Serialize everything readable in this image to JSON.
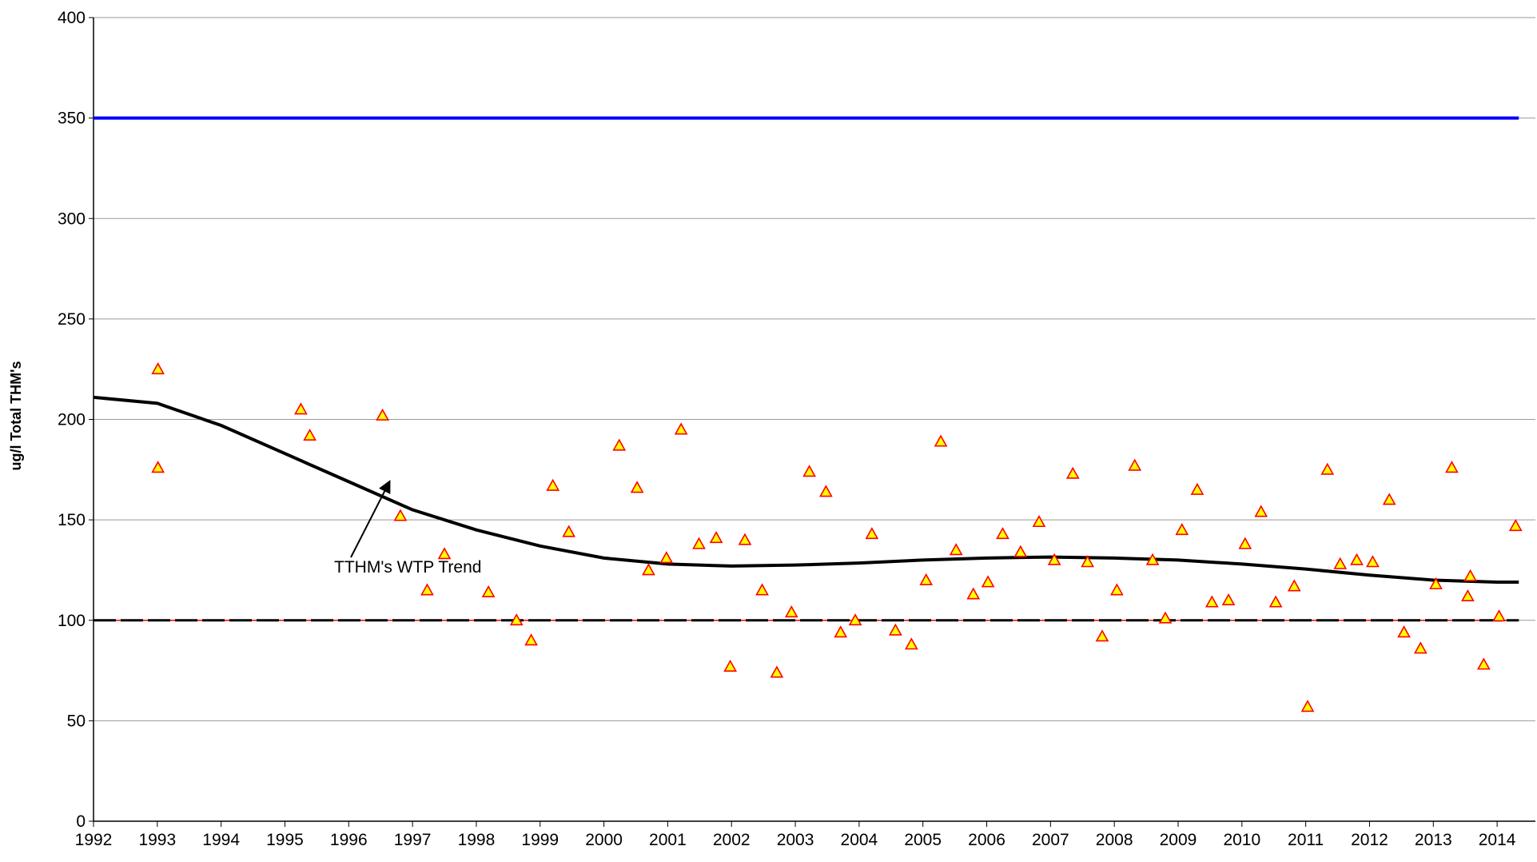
{
  "chart_data": {
    "type": "scatter",
    "y_label": "ug/l Total THM's",
    "annotation": "TTHM's WTP Trend",
    "xlim": [
      1992,
      2014.6
    ],
    "ylim": [
      0,
      400
    ],
    "xticks": [
      1992,
      1993,
      1994,
      1995,
      1996,
      1997,
      1998,
      1999,
      2000,
      2001,
      2002,
      2003,
      2004,
      2005,
      2006,
      2007,
      2008,
      2009,
      2010,
      2011,
      2012,
      2013,
      2014
    ],
    "yticks": [
      0,
      50,
      100,
      150,
      200,
      250,
      300,
      350,
      400
    ],
    "grid": true,
    "series": [
      {
        "mode": "lines",
        "color": "#ff0000",
        "dash": false,
        "width": 1.5,
        "x": [
          1992,
          2014.34
        ],
        "values": [
          100,
          100
        ]
      },
      {
        "mode": "lines",
        "color": "#000000",
        "dash": true,
        "width": 3,
        "x": [
          1992,
          2014.34
        ],
        "values": [
          100,
          100
        ]
      },
      {
        "mode": "lines",
        "color": "#0000ff",
        "dash": false,
        "width": 4,
        "x": [
          1992,
          2014.34
        ],
        "values": [
          350,
          350
        ]
      },
      {
        "mode": "lines",
        "color": "#000000",
        "dash": false,
        "width": 4,
        "x": [
          1992,
          1993,
          1994,
          1995,
          1996,
          1997,
          1998,
          1999,
          2000,
          2001,
          2002,
          2003,
          2004,
          2005,
          2006,
          2007,
          2008,
          2009,
          2010,
          2011,
          2012,
          2013,
          2014,
          2014.34
        ],
        "values": [
          211,
          208,
          197,
          183,
          169,
          155,
          145,
          137,
          131,
          128,
          127,
          127.5,
          128.5,
          130,
          131,
          131.5,
          131,
          130,
          128,
          125.5,
          122.5,
          120,
          119,
          119
        ]
      },
      {
        "mode": "markers",
        "color": "#ffff00",
        "edge": "#ff0000",
        "x": [
          1993.01,
          1993.01,
          1995.25,
          1995.39,
          1996.53,
          1996.81,
          1997.23,
          1997.5,
          1998.19,
          1998.63,
          1998.86,
          1999.2,
          1999.45,
          2000.24,
          2000.52,
          2000.7,
          2000.98,
          2001.21,
          2001.49,
          2001.76,
          2001.98,
          2002.21,
          2002.48,
          2002.71,
          2002.94,
          2003.22,
          2003.48,
          2003.71,
          2003.94,
          2004.2,
          2004.57,
          2004.82,
          2005.05,
          2005.28,
          2005.52,
          2005.79,
          2006.02,
          2006.25,
          2006.53,
          2006.82,
          2007.06,
          2007.35,
          2007.58,
          2007.81,
          2008.04,
          2008.32,
          2008.6,
          2008.8,
          2009.06,
          2009.3,
          2009.53,
          2009.79,
          2010.05,
          2010.3,
          2010.53,
          2010.82,
          2011.03,
          2011.34,
          2011.54,
          2011.8,
          2012.05,
          2012.31,
          2012.54,
          2012.8,
          2013.04,
          2013.29,
          2013.54,
          2013.58,
          2013.79,
          2014.03,
          2014.29
        ],
        "values": [
          225,
          176,
          205,
          192,
          202,
          152,
          115,
          133,
          114,
          100,
          90,
          167,
          144,
          187,
          166,
          125,
          131,
          195,
          138,
          141,
          77,
          140,
          115,
          74,
          104,
          174,
          164,
          94,
          100,
          143,
          95,
          88,
          120,
          189,
          135,
          113,
          119,
          143,
          134,
          149,
          130,
          173,
          129,
          92,
          115,
          177,
          130,
          101,
          145,
          165,
          109,
          110,
          138,
          154,
          109,
          117,
          57,
          175,
          128,
          130,
          129,
          160,
          94,
          86,
          118,
          176,
          112,
          122,
          78,
          102,
          147
        ]
      }
    ]
  }
}
